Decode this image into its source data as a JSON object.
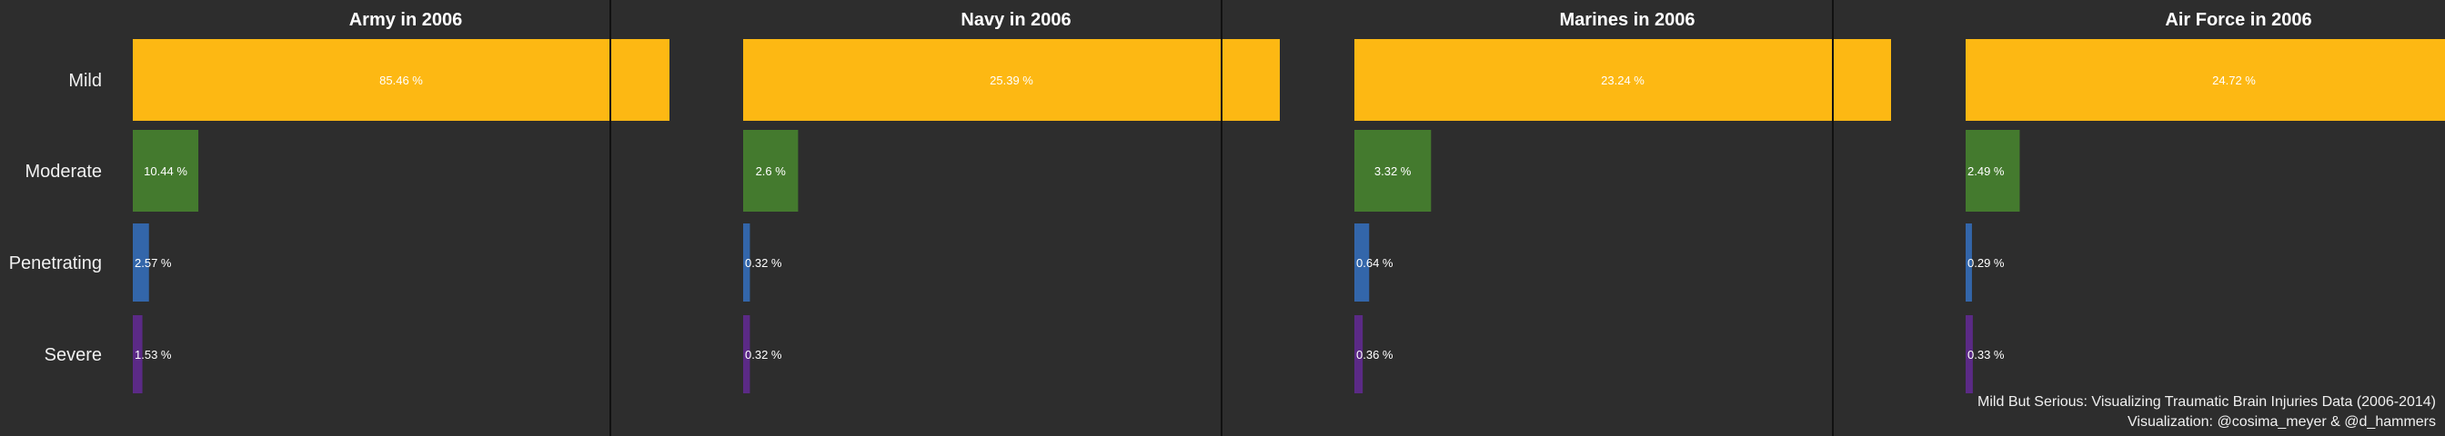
{
  "chart_data": [
    {
      "type": "bar",
      "orientation": "horizontal",
      "title": "Army in 2006",
      "categories": [
        "Mild",
        "Moderate",
        "Penetrating",
        "Severe"
      ],
      "values": [
        85.46,
        10.44,
        2.57,
        1.53
      ],
      "labels": [
        "85.46 %",
        "10.44 %",
        "2.57 %",
        "1.53 %"
      ],
      "colors": [
        "#FDB813",
        "#447A2E",
        "#3366AA",
        "#5B2A86"
      ]
    },
    {
      "type": "bar",
      "orientation": "horizontal",
      "title": "Navy in 2006",
      "categories": [
        "Mild",
        "Moderate",
        "Penetrating",
        "Severe"
      ],
      "values": [
        25.39,
        2.6,
        0.32,
        0.32
      ],
      "labels": [
        "25.39 %",
        "2.6 %",
        "0.32 %",
        "0.32 %"
      ],
      "colors": [
        "#FDB813",
        "#447A2E",
        "#3366AA",
        "#5B2A86"
      ]
    },
    {
      "type": "bar",
      "orientation": "horizontal",
      "title": "Marines in 2006",
      "categories": [
        "Mild",
        "Moderate",
        "Penetrating",
        "Severe"
      ],
      "values": [
        23.24,
        3.32,
        0.64,
        0.36
      ],
      "labels": [
        "23.24 %",
        "3.32 %",
        "0.64 %",
        "0.36 %"
      ],
      "colors": [
        "#FDB813",
        "#447A2E",
        "#3366AA",
        "#5B2A86"
      ]
    },
    {
      "type": "bar",
      "orientation": "horizontal",
      "title": "Air Force in 2006",
      "categories": [
        "Mild",
        "Moderate",
        "Penetrating",
        "Severe"
      ],
      "values": [
        24.72,
        2.49,
        0.29,
        0.33
      ],
      "labels": [
        "24.72 %",
        "2.49 %",
        "0.29 %",
        "0.33 %"
      ],
      "colors": [
        "#FDB813",
        "#447A2E",
        "#3366AA",
        "#5B2A86"
      ]
    }
  ],
  "caption": {
    "line1": "Mild But Serious: Visualizing Traumatic Brain Injuries Data (2006-2014)",
    "line2": "Visualization: @cosima_meyer & @d_hammers"
  },
  "colors": {
    "background": "#2d2d2d",
    "border": "#111111"
  }
}
